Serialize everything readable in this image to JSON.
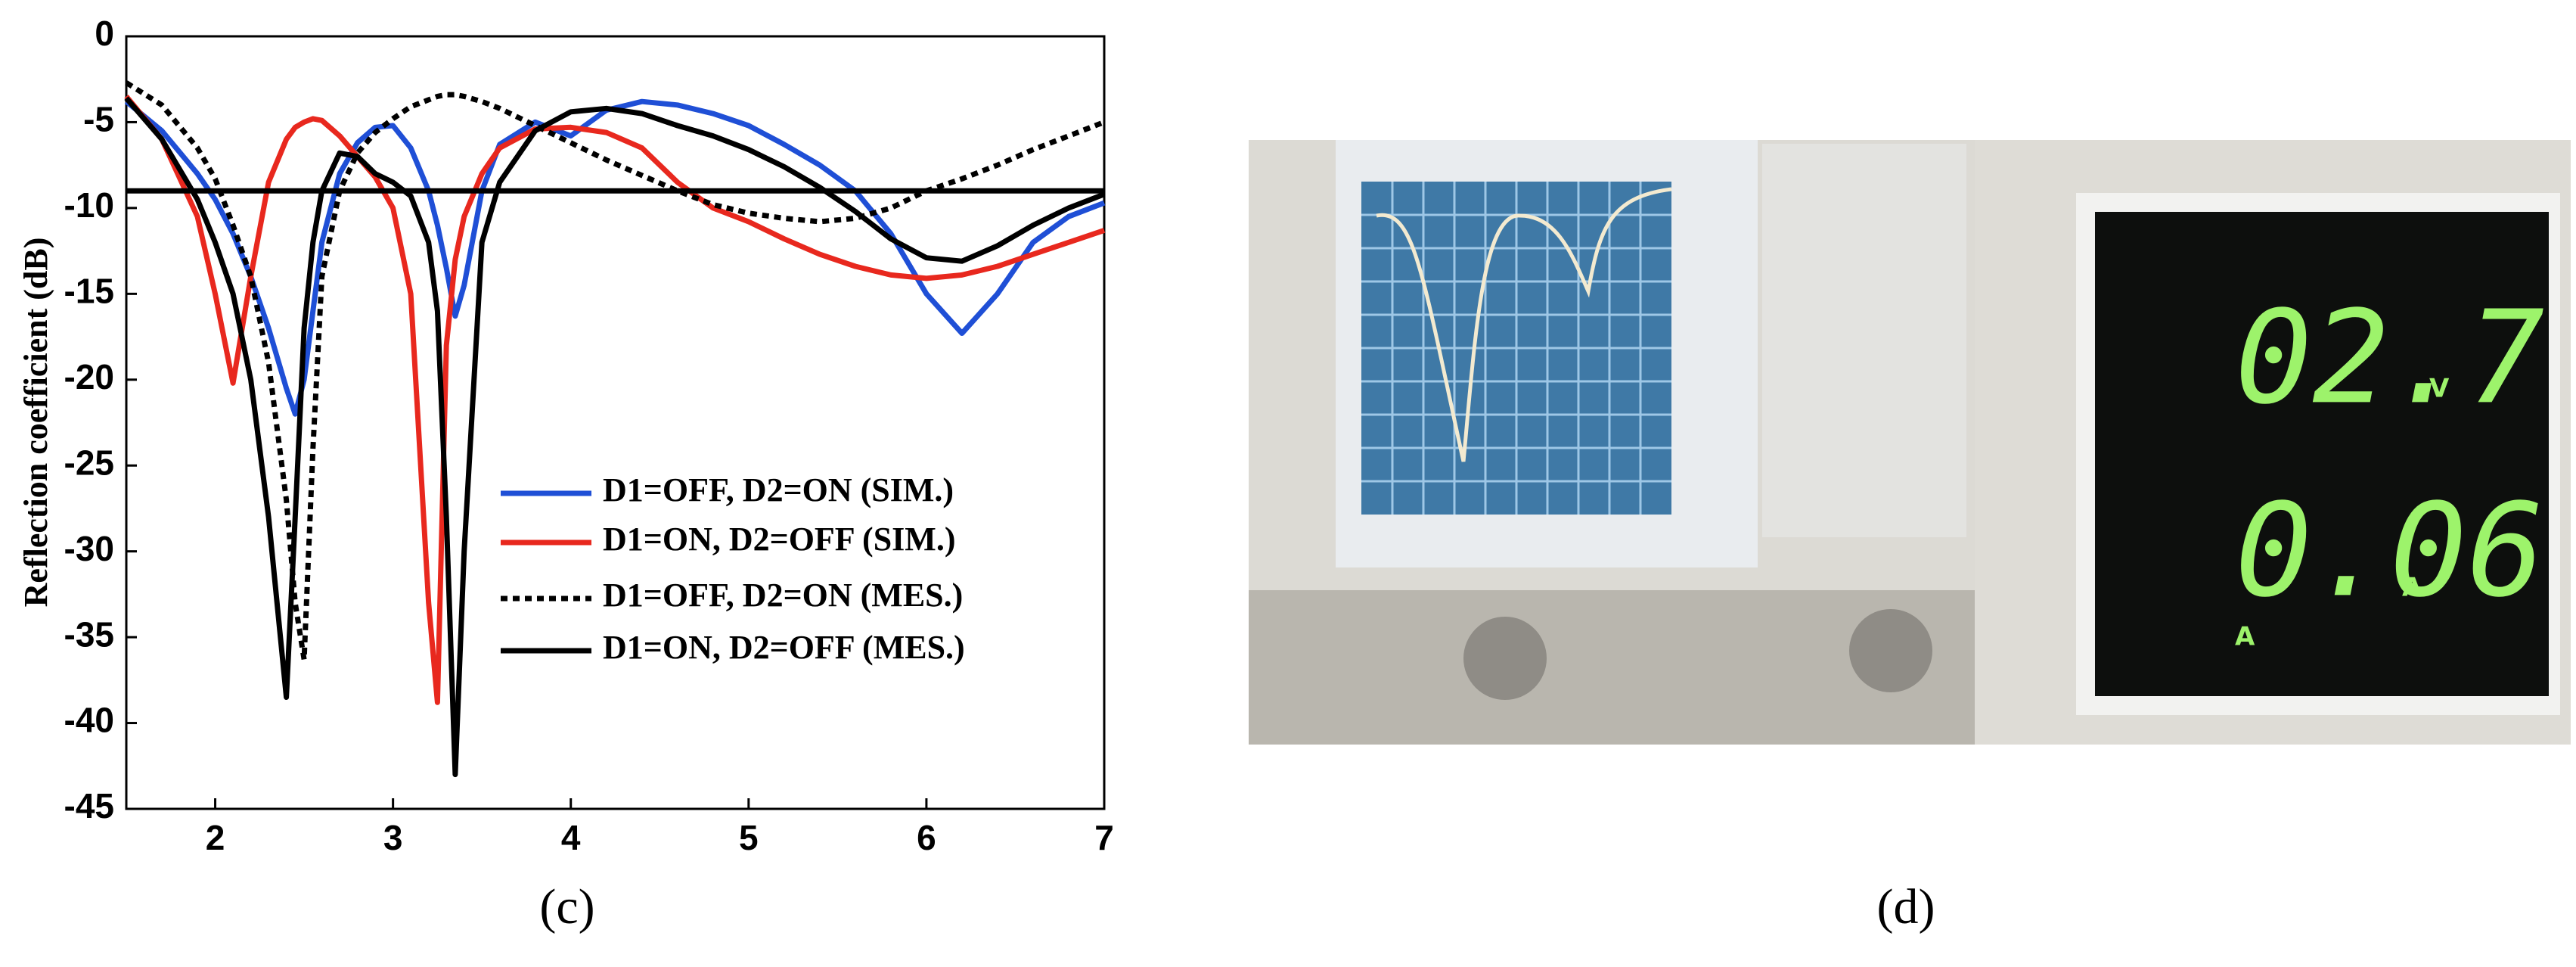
{
  "chart_data": {
    "type": "line",
    "y_label": "Reflection coefficient (dB)",
    "x": [
      1.5,
      1.7,
      1.9,
      2.0,
      2.1,
      2.2,
      2.3,
      2.4,
      2.45,
      2.5,
      2.55,
      2.6,
      2.7,
      2.8,
      2.9,
      3.0,
      3.1,
      3.2,
      3.25,
      3.3,
      3.35,
      3.4,
      3.5,
      3.6,
      3.8,
      4.0,
      4.2,
      4.4,
      4.6,
      4.8,
      5.0,
      5.2,
      5.4,
      5.6,
      5.8,
      6.0,
      6.2,
      6.4,
      6.6,
      6.8,
      7.0
    ],
    "series": [
      {
        "name": "D1=OFF, D2=ON (SIM.)",
        "color": "#1f4fd6",
        "linestyle": "solid",
        "values": [
          -3.8,
          -5.5,
          -8,
          -9.5,
          -11.5,
          -14,
          -17,
          -20.5,
          -22,
          -20,
          -16,
          -12,
          -8,
          -6.2,
          -5.3,
          -5.2,
          -6.5,
          -9,
          -11,
          -13.5,
          -16.3,
          -14.5,
          -9,
          -6.3,
          -5,
          -5.8,
          -4.3,
          -3.8,
          -4,
          -4.5,
          -5.2,
          -6.3,
          -7.5,
          -9,
          -11.5,
          -15,
          -17.3,
          -15,
          -12,
          -10.5,
          -9.7
        ]
      },
      {
        "name": "D1=ON, D2=OFF (SIM.)",
        "color": "#e8281e",
        "linestyle": "solid",
        "values": [
          -3.5,
          -6,
          -10.5,
          -15,
          -20.2,
          -14,
          -8.5,
          -6,
          -5.3,
          -5,
          -4.8,
          -4.9,
          -5.8,
          -7,
          -8.2,
          -10,
          -15,
          -33,
          -38.8,
          -18,
          -13,
          -10.5,
          -8,
          -6.5,
          -5.4,
          -5.3,
          -5.6,
          -6.5,
          -8.5,
          -10,
          -10.8,
          -11.8,
          -12.7,
          -13.4,
          -13.9,
          -14.1,
          -13.9,
          -13.4,
          -12.7,
          -12,
          -11.3
        ]
      },
      {
        "name": "D1=OFF, D2=ON (MES.)",
        "color": "#000000",
        "linestyle": "dotted",
        "values": [
          -2.7,
          -4,
          -6.5,
          -8.3,
          -11,
          -14,
          -19,
          -27,
          -33,
          -36.3,
          -24,
          -14,
          -9,
          -6.8,
          -5.6,
          -4.8,
          -4.1,
          -3.7,
          -3.5,
          -3.4,
          -3.4,
          -3.5,
          -3.8,
          -4.2,
          -5.2,
          -6.2,
          -7.2,
          -8.1,
          -9,
          -9.8,
          -10.3,
          -10.6,
          -10.8,
          -10.6,
          -10,
          -9,
          -8.3,
          -7.5,
          -6.6,
          -5.8,
          -5
        ]
      },
      {
        "name": "D1=ON, D2=OFF (MES.)",
        "color": "#000000",
        "linestyle": "solid",
        "values": [
          -3.6,
          -6,
          -9.5,
          -12,
          -15,
          -20,
          -28,
          -38.5,
          -28,
          -17,
          -12,
          -9,
          -6.8,
          -7,
          -8,
          -8.5,
          -9.3,
          -12,
          -16,
          -28,
          -43,
          -30,
          -12,
          -8.5,
          -5.5,
          -4.4,
          -4.2,
          -4.5,
          -5.2,
          -5.8,
          -6.6,
          -7.6,
          -8.8,
          -10.2,
          -11.8,
          -12.9,
          -13.1,
          -12.2,
          -11,
          -10,
          -9.2
        ]
      }
    ],
    "reference_line": -9,
    "xlim": [
      1.5,
      7
    ],
    "ylim": [
      -45,
      0
    ],
    "xticks": [
      2,
      3,
      4,
      5,
      6,
      7
    ],
    "yticks": [
      0,
      -5,
      -10,
      -15,
      -20,
      -25,
      -30,
      -35,
      -40,
      -45
    ],
    "grid": false
  },
  "captions": [
    "(c)",
    "(d)"
  ],
  "photo": {
    "readouts": [
      "02.7",
      "0.06"
    ],
    "units": [
      "V",
      "A",
      "A"
    ]
  }
}
